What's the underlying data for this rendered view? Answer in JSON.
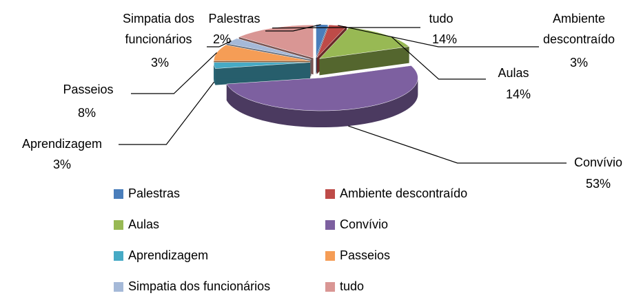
{
  "chart_data": {
    "type": "pie3d",
    "categories": [
      "Palestras",
      "Ambiente descontraído",
      "Aulas",
      "Convívio",
      "Aprendizagem",
      "Passeios",
      "Simpatia dos funcionários",
      "tudo"
    ],
    "values": [
      2,
      3,
      14,
      53,
      3,
      8,
      3,
      14
    ],
    "value_labels": [
      "2%",
      "3%",
      "14%",
      "53%",
      "3%",
      "8%",
      "3%",
      "14%"
    ],
    "colors": [
      "#4a7ebb",
      "#be4b48",
      "#98b954",
      "#7d60a0",
      "#46aac5",
      "#f59d56",
      "#a5b9d8",
      "#d99694"
    ],
    "legend": "bottom"
  }
}
